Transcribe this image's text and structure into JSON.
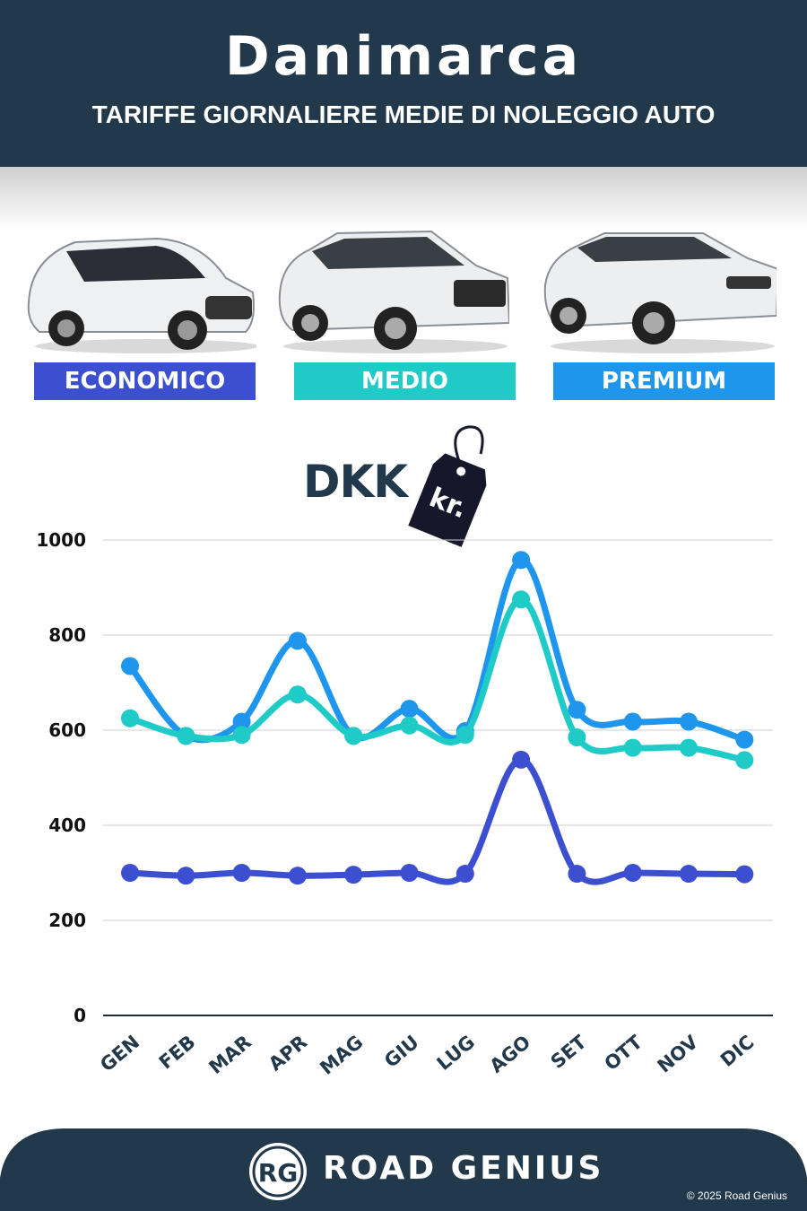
{
  "header": {
    "title": "Danimarca",
    "subtitle": "TARIFFE GIORNALIERE MEDIE DI NOLEGGIO AUTO"
  },
  "categories_cards": [
    {
      "label": "ECONOMICO",
      "color": "#3d4fd1"
    },
    {
      "label": "MEDIO",
      "color": "#1ecbc6"
    },
    {
      "label": "PREMIUM",
      "color": "#1e96ee"
    }
  ],
  "currency": {
    "code": "DKK",
    "symbol": "kr."
  },
  "footer": {
    "brand": "ROAD GENIUS",
    "logo": "RG",
    "copyright": "© 2025 Road Genius"
  },
  "chart_data": {
    "type": "line",
    "categories": [
      "GEN",
      "FEB",
      "MAR",
      "APR",
      "MAG",
      "GIU",
      "LUG",
      "AGO",
      "SET",
      "OTT",
      "NOV",
      "DIC"
    ],
    "ylim": [
      0,
      1000
    ],
    "yticks": [
      0,
      200,
      400,
      600,
      800,
      1000
    ],
    "grid": true,
    "series": [
      {
        "name": "PREMIUM",
        "color": "#1e96ee",
        "values": [
          735,
          588,
          618,
          788,
          588,
          645,
          598,
          958,
          643,
          618,
          618,
          580
        ]
      },
      {
        "name": "MEDIO",
        "color": "#1ecbc6",
        "values": [
          625,
          588,
          590,
          675,
          588,
          610,
          590,
          875,
          585,
          563,
          563,
          537
        ]
      },
      {
        "name": "ECONOMICO",
        "color": "#3d4fd1",
        "values": [
          300,
          294,
          300,
          294,
          296,
          300,
          298,
          538,
          298,
          300,
          298,
          297
        ]
      }
    ]
  }
}
